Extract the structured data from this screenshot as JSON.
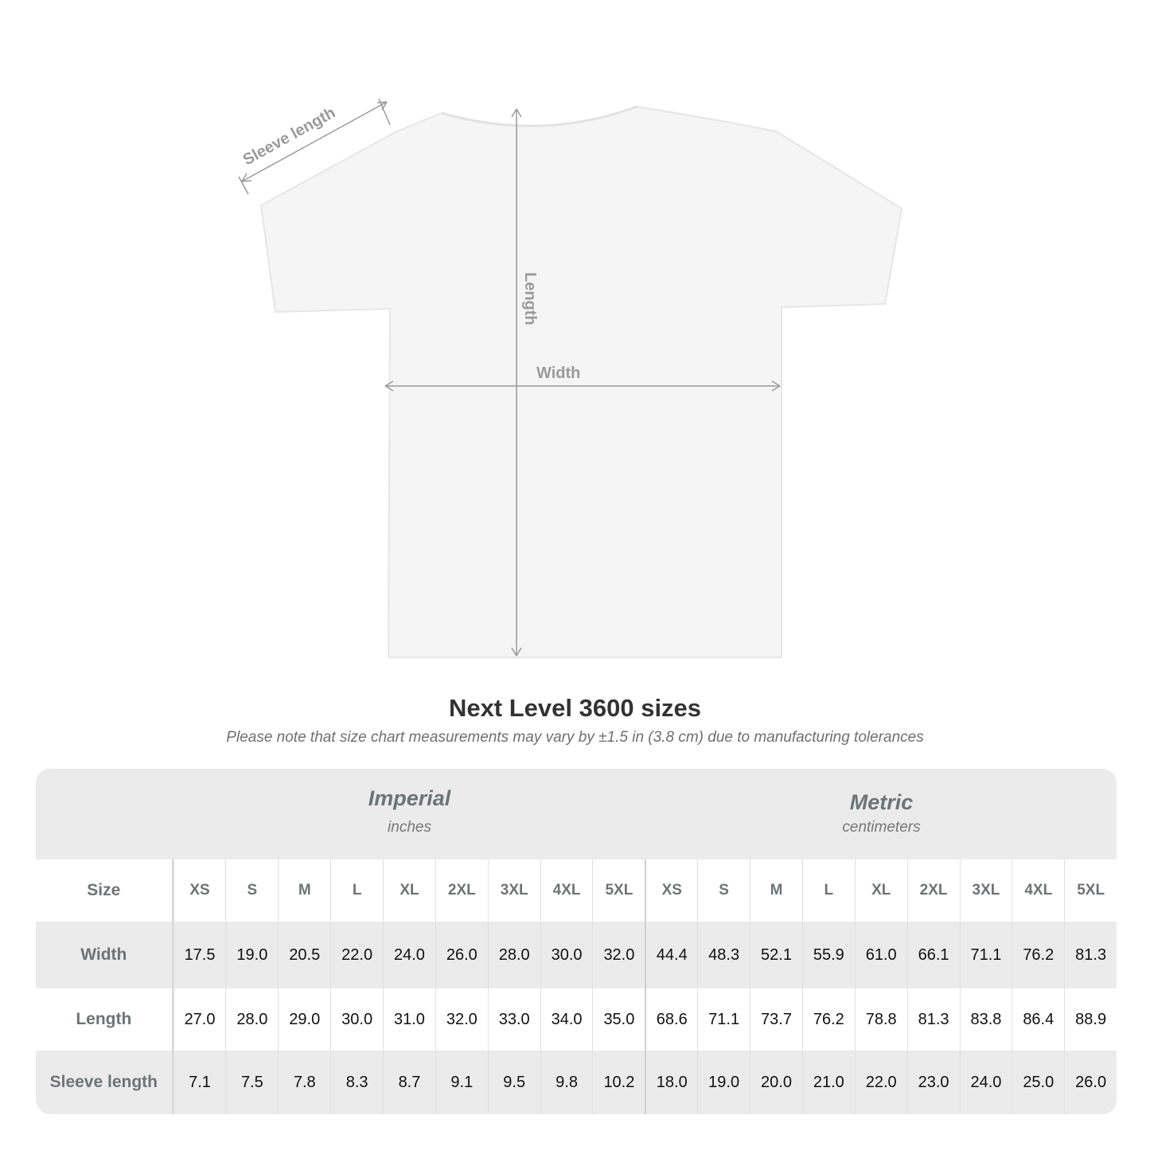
{
  "diagram": {
    "sleeve_label": "Sleeve length",
    "length_label": "Length",
    "width_label": "Width"
  },
  "title": "Next Level 3600 sizes",
  "note": "Please note that size chart measurements may vary by ±1.5 in (3.8 cm) due to manufacturing tolerances",
  "table": {
    "imperial": {
      "name": "Imperial",
      "unit": "inches"
    },
    "metric": {
      "name": "Metric",
      "unit": "centimeters"
    },
    "size_label": "Size",
    "sizes": [
      "XS",
      "S",
      "M",
      "L",
      "XL",
      "2XL",
      "3XL",
      "4XL",
      "5XL"
    ],
    "rows": [
      {
        "label": "Width",
        "imperial": [
          "17.5",
          "19.0",
          "20.5",
          "22.0",
          "24.0",
          "26.0",
          "28.0",
          "30.0",
          "32.0"
        ],
        "metric": [
          "44.4",
          "48.3",
          "52.1",
          "55.9",
          "61.0",
          "66.1",
          "71.1",
          "76.2",
          "81.3"
        ]
      },
      {
        "label": "Length",
        "imperial": [
          "27.0",
          "28.0",
          "29.0",
          "30.0",
          "31.0",
          "32.0",
          "33.0",
          "34.0",
          "35.0"
        ],
        "metric": [
          "68.6",
          "71.1",
          "73.7",
          "76.2",
          "78.8",
          "81.3",
          "83.8",
          "86.4",
          "88.9"
        ]
      },
      {
        "label": "Sleeve length",
        "imperial": [
          "7.1",
          "7.5",
          "7.8",
          "8.3",
          "8.7",
          "9.1",
          "9.5",
          "9.8",
          "10.2"
        ],
        "metric": [
          "18.0",
          "19.0",
          "20.0",
          "21.0",
          "22.0",
          "23.0",
          "24.0",
          "25.0",
          "26.0"
        ]
      }
    ]
  },
  "colors": {
    "header_bg": "#ebebeb",
    "label_text": "#6d7474",
    "arrow": "#9a9a9a"
  }
}
